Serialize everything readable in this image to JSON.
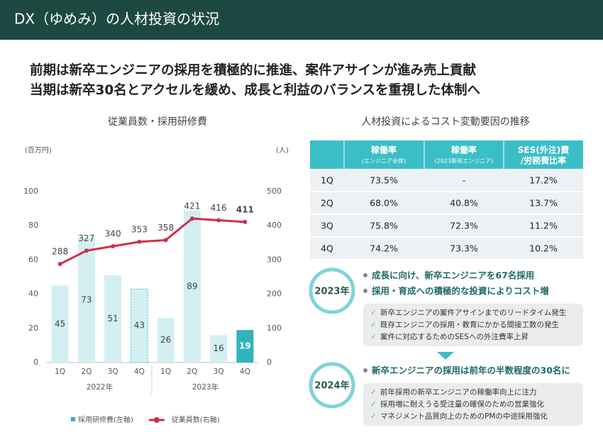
{
  "header": {
    "title": "DX（ゆめみ）の人材投資の状況"
  },
  "headline": [
    "前期は新卒エンジニアの採用を積極的に推進、案件アサインが進み売上貢献",
    "当期は新卒30名とアクセルを緩め、成長と利益のバランスを重視した体制へ"
  ],
  "chart_data": {
    "type": "bar_line",
    "title": "従業員数・採用研修費",
    "y_label": "(百万円)",
    "y2_label": "(人)",
    "categories": [
      "1Q",
      "2Q",
      "3Q",
      "4Q",
      "1Q",
      "2Q",
      "3Q",
      "4Q"
    ],
    "category_groups": [
      "2022年",
      "2023年"
    ],
    "series": [
      {
        "name": "採用研修費(左軸)",
        "kind": "bar",
        "color": "#d3eff1",
        "point_colors": [
          "#d3eff1",
          "#d3eff1",
          "#d3eff1",
          "#d3eff1",
          "#d3eff1",
          "#d3eff1",
          "#d3eff1",
          "#2fb3bc"
        ],
        "bar_styles": [
          "solid",
          "solid",
          "solid",
          "dashed",
          "solid",
          "solid",
          "solid",
          "solid"
        ],
        "values": [
          45,
          73,
          51,
          43,
          26,
          89,
          16,
          19
        ]
      },
      {
        "name": "従業員数(右軸)",
        "kind": "line",
        "color": "#cf2f4b",
        "axis": "y2",
        "values": [
          288,
          327,
          340,
          353,
          358,
          421,
          416,
          411
        ]
      }
    ],
    "ylim": [
      0,
      100
    ],
    "yticks": [
      0,
      20,
      40,
      60,
      80,
      100
    ],
    "y2lim": [
      0,
      500
    ],
    "y2ticks": [
      0,
      100,
      200,
      300,
      400,
      500
    ]
  },
  "table": {
    "title": "人材投資によるコスト変動要因の推移",
    "header": [
      [
        "稼働率",
        "(エンジニア全体)"
      ],
      [
        "稼働率",
        "(2023新卒エンジニア)"
      ],
      [
        "SES(外注)費",
        "/労務費比率"
      ]
    ],
    "rows": [
      [
        "1Q",
        "73.5%",
        "-",
        "17.2%"
      ],
      [
        "2Q",
        "68.0%",
        "40.8%",
        "13.7%"
      ],
      [
        "3Q",
        "75.8%",
        "72.3%",
        "11.2%"
      ],
      [
        "4Q",
        "74.2%",
        "73.3%",
        "10.2%"
      ]
    ]
  },
  "y2023": {
    "badge": "2023年",
    "points": [
      "成長に向け、新卒エンジニアを67名採用",
      "採用・育成への積極的な投資によりコスト増"
    ],
    "items": [
      "新卒エンジニアの案件アサインまでのリードタイム発生",
      "既存エンジニアの採用・教育にかかる間接工数の発生",
      "案件に対応するためのSESへの外注費率上昇"
    ]
  },
  "y2024": {
    "badge": "2024年",
    "points": [
      "新卒エンジニアの採用は前年の半数程度の30名に"
    ],
    "items": [
      "前年採用の新卒エンジニアの稼働率向上に注力",
      "採用増に耐えうる受注量の確保のための営業強化",
      "マネジメント品質向上のためのPMの中途採用強化"
    ]
  }
}
